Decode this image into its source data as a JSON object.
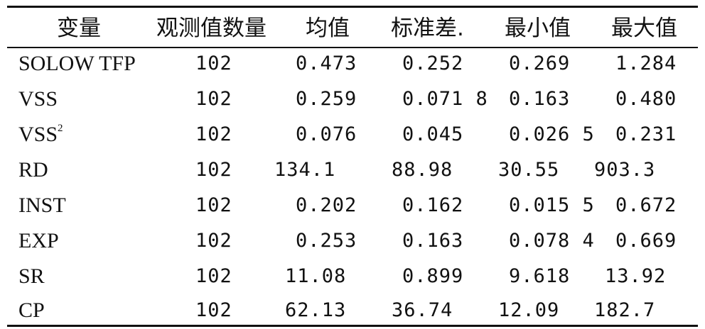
{
  "table": {
    "headers": [
      "变量",
      "观测值数量",
      "均值",
      "标准差.",
      "最小值",
      "最大值"
    ],
    "rows": [
      {
        "var": "SOLOW TFP",
        "sup": "",
        "n": "102",
        "mean": "0.473",
        "sd": "0.252",
        "min": "0.269",
        "max": "1.284"
      },
      {
        "var": "VSS",
        "sup": "",
        "n": "102",
        "mean": "0.259",
        "sd": "0.071 8",
        "min": "0.163",
        "max": "0.480"
      },
      {
        "var": "VSS",
        "sup": "2",
        "n": "102",
        "mean": "0.076",
        "sd": "0.045",
        "min": "0.026 5",
        "max": "0.231"
      },
      {
        "var": "RD",
        "sup": "",
        "n": "102",
        "mean": "134.1",
        "sd": "88.98",
        "min": "30.55",
        "max": "903.3"
      },
      {
        "var": "INST",
        "sup": "",
        "n": "102",
        "mean": "0.202",
        "sd": "0.162",
        "min": "0.015 5",
        "max": "0.672"
      },
      {
        "var": "EXP",
        "sup": "",
        "n": "102",
        "mean": "0.253",
        "sd": "0.163",
        "min": "0.078 4",
        "max": "0.669"
      },
      {
        "var": "SR",
        "sup": "",
        "n": "102",
        "mean": "11.08",
        "sd": "0.899",
        "min": "9.618",
        "max": "13.92"
      },
      {
        "var": "CP",
        "sup": "",
        "n": "102",
        "mean": "62.13",
        "sd": "36.74",
        "min": "12.09",
        "max": "182.7"
      }
    ]
  }
}
